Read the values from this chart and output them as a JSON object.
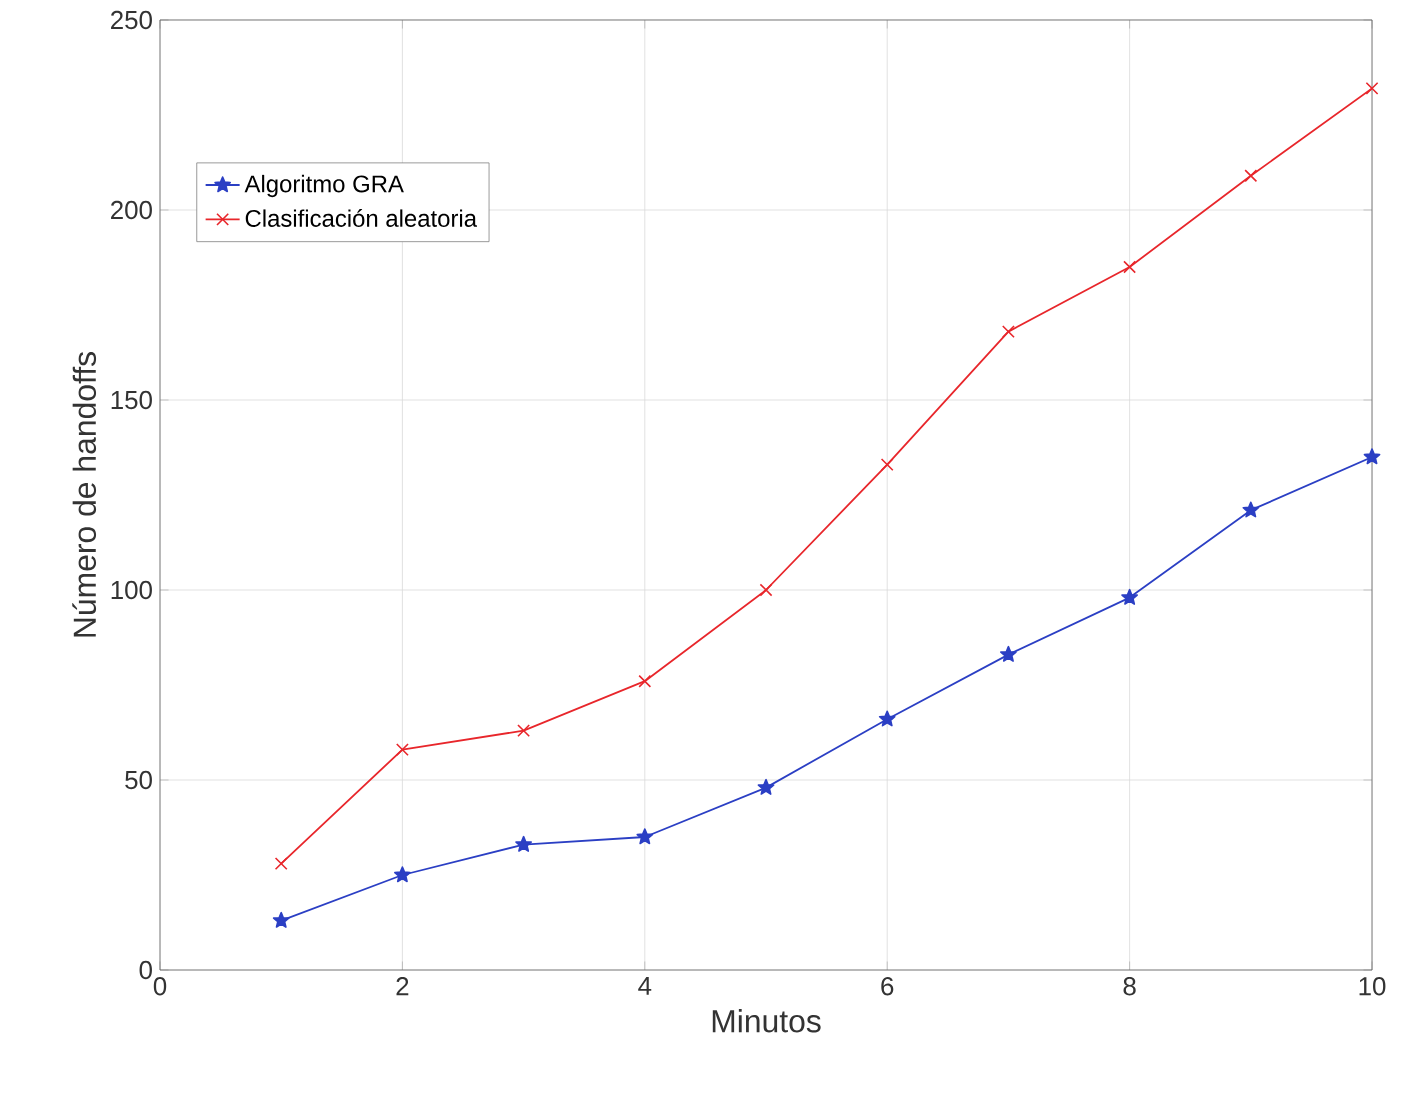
{
  "chart_data": {
    "type": "line",
    "xlabel": "Minutos",
    "ylabel": "Número de handoffs",
    "x": [
      1,
      2,
      3,
      4,
      5,
      6,
      7,
      8,
      9,
      10
    ],
    "series": [
      {
        "name": "Algoritmo GRA",
        "color": "#2b3fc4",
        "marker": "star",
        "values": [
          13,
          25,
          33,
          35,
          48,
          66,
          83,
          98,
          121,
          135
        ]
      },
      {
        "name": "Clasificación aleatoria",
        "color": "#e8262b",
        "marker": "cross",
        "values": [
          28,
          58,
          63,
          76,
          100,
          133,
          168,
          185,
          209,
          232
        ]
      }
    ],
    "xlim": [
      0,
      10
    ],
    "ylim": [
      0,
      250
    ],
    "xticks": [
      0,
      2,
      4,
      6,
      8,
      10
    ],
    "yticks": [
      0,
      50,
      100,
      150,
      200,
      250
    ],
    "grid": true,
    "legend": "top left",
    "line_style": "solid"
  }
}
